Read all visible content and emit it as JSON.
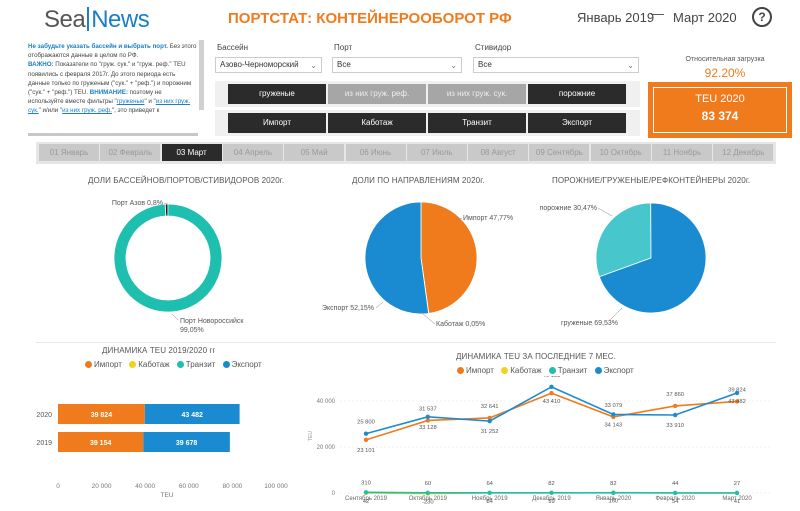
{
  "header": {
    "logo_left": "Sea",
    "logo_right": "News",
    "title": "ПОРТСТАТ: КОНТЕЙНЕРООБОРОТ РФ",
    "period_from": "Январь 2019",
    "period_to": "Март 2020",
    "help": "?"
  },
  "notice": {
    "line1_bold": "Не забудьте указать бассейн и выбрать порт.",
    "line1_rest": " Без этого отображаются данные в целом по РФ.",
    "important_label": "ВАЖНО:",
    "important_text": " Показатели по \"груж. сук.\" и \"груж. реф.\" TEU появились с февраля 2017г. До этого периода есть данные только по груженым (\"сук.\" + \"реф.\") и порожним (\"сук.\" + \"реф.\") TEU.",
    "attention_label": " ВНИМАНИЕ:",
    "attention_text": " поэтому не используйте вместе фильтры \"",
    "link1": "груженые",
    "mid": "\" и \"",
    "link2": "из них груж. сук.",
    "mid2": "\" и/или \"",
    "link3": "из них груж. реф.",
    "tail": "\", это приведет к"
  },
  "filters": {
    "basin_label": "Бассейн",
    "basin_value": "Азово-Черноморский",
    "port_label": "Порт",
    "port_value": "Все",
    "stevedore_label": "Стивидор",
    "stevedore_value": "Все"
  },
  "cargo_buttons": [
    "груженые",
    "из них груж. реф.",
    "из них груж. сук.",
    "порожние"
  ],
  "direction_buttons": [
    "Импорт",
    "Каботаж",
    "Транзит",
    "Экспорт"
  ],
  "kpi": {
    "load_label": "Относительная загрузка",
    "load_value": "92.20%",
    "teu_label": "TEU 2020",
    "teu_value": "83 374"
  },
  "months": [
    "01 Январь",
    "02 Февраль",
    "03 Март",
    "04 Апрель",
    "05 Май",
    "06 Июнь",
    "07 Июль",
    "08 Август",
    "09 Сентябрь",
    "10 Октябрь",
    "11 Ноябрь",
    "12 Декабрь"
  ],
  "active_month": "03 Март",
  "colors": {
    "orange": "#f07b1d",
    "blue": "#1b8bd1",
    "teal": "#1fbfb0",
    "light_teal": "#47c6cc",
    "yellow": "#f2d21b",
    "dark": "#2b2b2b"
  },
  "chart_data": [
    {
      "type": "pie",
      "title": "ДОЛИ БАССЕЙНОВ/ПОРТОВ/СТИВИДОРОВ 2020г.",
      "labels": [
        "Порт Азов",
        "Порт Новороссийск"
      ],
      "values": [
        0.8,
        99.05
      ],
      "display_labels": [
        "Порт Азов 0,8%",
        "Порт Новороссийск",
        "99,05%"
      ]
    },
    {
      "type": "pie",
      "title": "ДОЛИ ПО НАПРАВЛЕНИЯМ 2020г.",
      "labels": [
        "Импорт",
        "Экспорт",
        "Каботаж"
      ],
      "values": [
        47.77,
        52.15,
        0.05
      ],
      "display_labels": [
        "Импорт 47,77%",
        "Экспорт 52,15%",
        "Каботаж 0,05%"
      ]
    },
    {
      "type": "pie",
      "title": "ПОРОЖНИЕ/ГРУЖЕНЫЕ/РЕФКОНТЕЙНЕРЫ 2020г.",
      "labels": [
        "порожние",
        "груженые"
      ],
      "values": [
        30.47,
        69.53
      ],
      "display_labels": [
        "порожние 30,47%",
        "груженые 69,53%"
      ]
    },
    {
      "type": "bar",
      "title": "ДИНАМИКА TEU 2019/2020 гг",
      "xlabel": "TEU",
      "categories": [
        "2020",
        "2019"
      ],
      "series": [
        {
          "name": "Импорт",
          "values": [
            39824,
            39154
          ],
          "labels": [
            "39 824",
            "39 154"
          ]
        },
        {
          "name": "Экспорт",
          "values": [
            43482,
            39678
          ],
          "labels": [
            "43 482",
            "39 678"
          ]
        }
      ],
      "legend": [
        "Импорт",
        "Каботаж",
        "Транзит",
        "Экспорт"
      ],
      "xticks": [
        "0",
        "20 000",
        "40 000",
        "60 000",
        "80 000",
        "100 000"
      ],
      "xlim": [
        0,
        100000
      ]
    },
    {
      "type": "line",
      "title": "ДИНАМИКА TEU ЗА ПОСЛЕДНИЕ 7 МЕС.",
      "ylabel": "TEU",
      "categories": [
        "Сентябрь 2019",
        "Октябрь 2019",
        "Ноябрь 2019",
        "Декабрь 2019",
        "Январь 2020",
        "Февраль 2020",
        "Март 2020"
      ],
      "legend": [
        "Импорт",
        "Каботаж",
        "Транзит",
        "Экспорт"
      ],
      "yticks": [
        "40 000",
        "20 000",
        "0"
      ],
      "ylim": [
        0,
        50000
      ],
      "series": [
        {
          "name": "Импорт",
          "values": [
            23101,
            31537,
            32641,
            43410,
            33079,
            37860,
            39824
          ],
          "labels": [
            "23 101",
            "31 537",
            "32 641",
            "43 410",
            "33 079",
            "37 860",
            "39 824"
          ]
        },
        {
          "name": "Экспорт",
          "values": [
            25800,
            33128,
            31252,
            46153,
            34143,
            33910,
            43482
          ],
          "labels": [
            "25 800",
            "33 128",
            "31 252",
            "46 153",
            "34 143",
            "33 910",
            "43 482"
          ]
        },
        {
          "name": "Каботаж",
          "values": [
            42,
            -230,
            84,
            59,
            160,
            54,
            41
          ],
          "labels": [
            "42",
            "-230",
            "84",
            "59",
            "160",
            "54",
            "41"
          ]
        },
        {
          "name": "Транзит",
          "values": [
            310,
            60,
            64,
            82,
            82,
            44,
            27
          ],
          "labels": [
            "310",
            "60",
            "64",
            "82",
            "82",
            "44",
            "27"
          ]
        }
      ]
    }
  ]
}
